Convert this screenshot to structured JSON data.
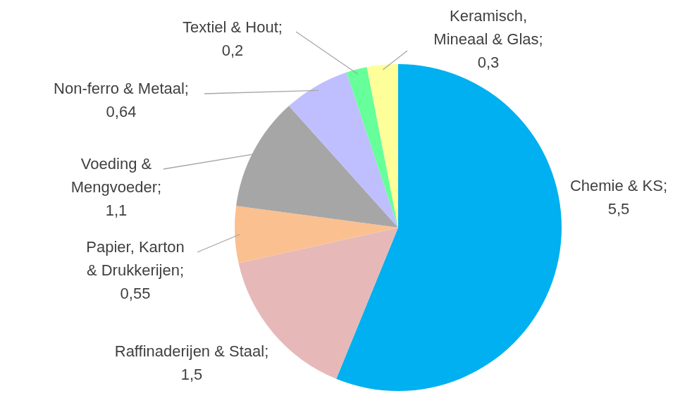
{
  "chart_data": {
    "type": "pie",
    "categories": [
      "Chemie & KS;",
      "Raffinaderijen & Staal;",
      "Papier, Karton\n& Drukkerijen;",
      "Voeding &\nMengvoeder;",
      "Non-ferro & Metaal;",
      "Textiel & Hout;",
      "Keramisch,\nMineaal & Glas;"
    ],
    "values": [
      5.5,
      1.5,
      0.55,
      1.1,
      0.64,
      0.2,
      0.3
    ],
    "value_labels": [
      "5,5",
      "1,5",
      "0,55",
      "1,1",
      "0,64",
      "0,2",
      "0,3"
    ],
    "colors": [
      "#00b0f0",
      "#e6b9b8",
      "#fac090",
      "#a6a6a6",
      "#bfbfff",
      "#66ff99",
      "#ffff99"
    ],
    "data_labels": true
  }
}
